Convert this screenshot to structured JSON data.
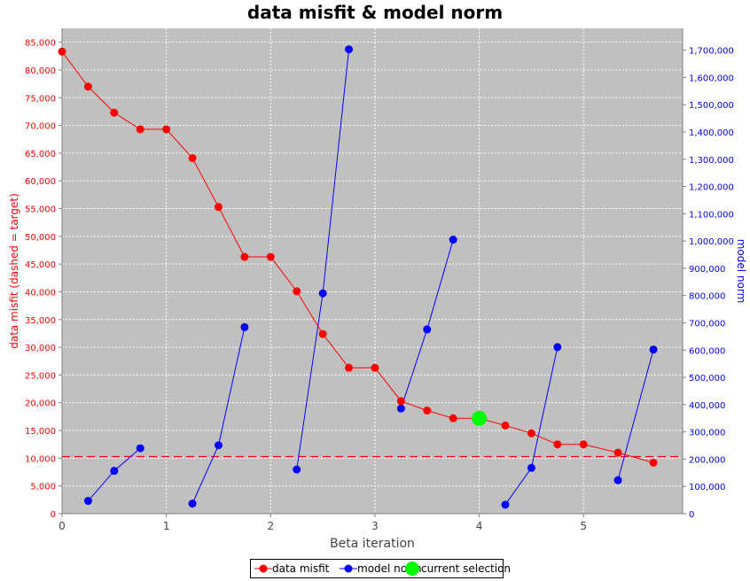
{
  "chart_data": {
    "type": "line",
    "title": "data misfit & model norm",
    "xlabel": "Beta iteration",
    "ylabel_left": "data misfit (dashed = target)",
    "ylabel_right": "model norm",
    "xlim": [
      0,
      5.95
    ],
    "x_ticks": [
      0,
      1,
      2,
      3,
      4,
      5
    ],
    "ylim_left": [
      0,
      87500
    ],
    "ylim_right": [
      0,
      1780000
    ],
    "y_ticks_left": [
      "0",
      "5,000",
      "10,000",
      "15,000",
      "20,000",
      "25,000",
      "30,000",
      "35,000",
      "40,000",
      "45,000",
      "50,000",
      "55,000",
      "60,000",
      "65,000",
      "70,000",
      "75,000",
      "80,000",
      "85,000"
    ],
    "y_ticks_right": [
      "0",
      "100,000",
      "200,000",
      "300,000",
      "400,000",
      "500,000",
      "600,000",
      "700,000",
      "800,000",
      "900,000",
      "1,000,000",
      "1,100,000",
      "1,200,000",
      "1,300,000",
      "1,400,000",
      "1,500,000",
      "1,600,000",
      "1,700,000"
    ],
    "grid": true,
    "target_misfit": 10300,
    "series": [
      {
        "name": "data misfit",
        "axis": "left",
        "color": "#ff0000",
        "x": [
          0,
          0.25,
          0.5,
          0.75,
          1.0,
          1.25,
          1.5,
          1.75,
          2.0,
          2.25,
          2.5,
          2.75,
          3.0,
          3.25,
          3.5,
          3.75,
          4.0,
          4.25,
          4.5,
          4.75,
          5.0,
          5.33,
          5.67
        ],
        "y": [
          83300,
          77000,
          72300,
          69300,
          69300,
          64100,
          55300,
          46300,
          46300,
          40100,
          32400,
          26300,
          26300,
          20300,
          18600,
          17200,
          17200,
          15900,
          14500,
          12500,
          12500,
          11000,
          9200
        ]
      },
      {
        "name": "model norm",
        "axis": "right",
        "color": "#0000ff",
        "segments": [
          {
            "x": [
              0.25,
              0.5,
              0.75
            ],
            "y": [
              47000,
              157000,
              240000
            ]
          },
          {
            "x": [
              1.25,
              1.5,
              1.75
            ],
            "y": [
              37000,
              251000,
              684000
            ]
          },
          {
            "x": [
              2.25,
              2.5,
              2.75
            ],
            "y": [
              162000,
              808000,
              1703000
            ]
          },
          {
            "x": [
              3.25,
              3.5,
              3.75
            ],
            "y": [
              386000,
              676000,
              1005000
            ]
          },
          {
            "x": [
              4.25,
              4.5,
              4.75
            ],
            "y": [
              33000,
              168000,
              611000
            ]
          },
          {
            "x": [
              5.33,
              5.67
            ],
            "y": [
              123000,
              602000
            ]
          }
        ]
      }
    ],
    "current_selection": {
      "x": 4.0,
      "y": 17200,
      "color": "#00ff00"
    },
    "legend": {
      "position": "bottom",
      "items": [
        {
          "label": "data misfit",
          "color": "#ff0000"
        },
        {
          "label": "model norm",
          "color": "#0000ff"
        },
        {
          "label": "current selection",
          "color": "#00ff00"
        }
      ]
    }
  }
}
